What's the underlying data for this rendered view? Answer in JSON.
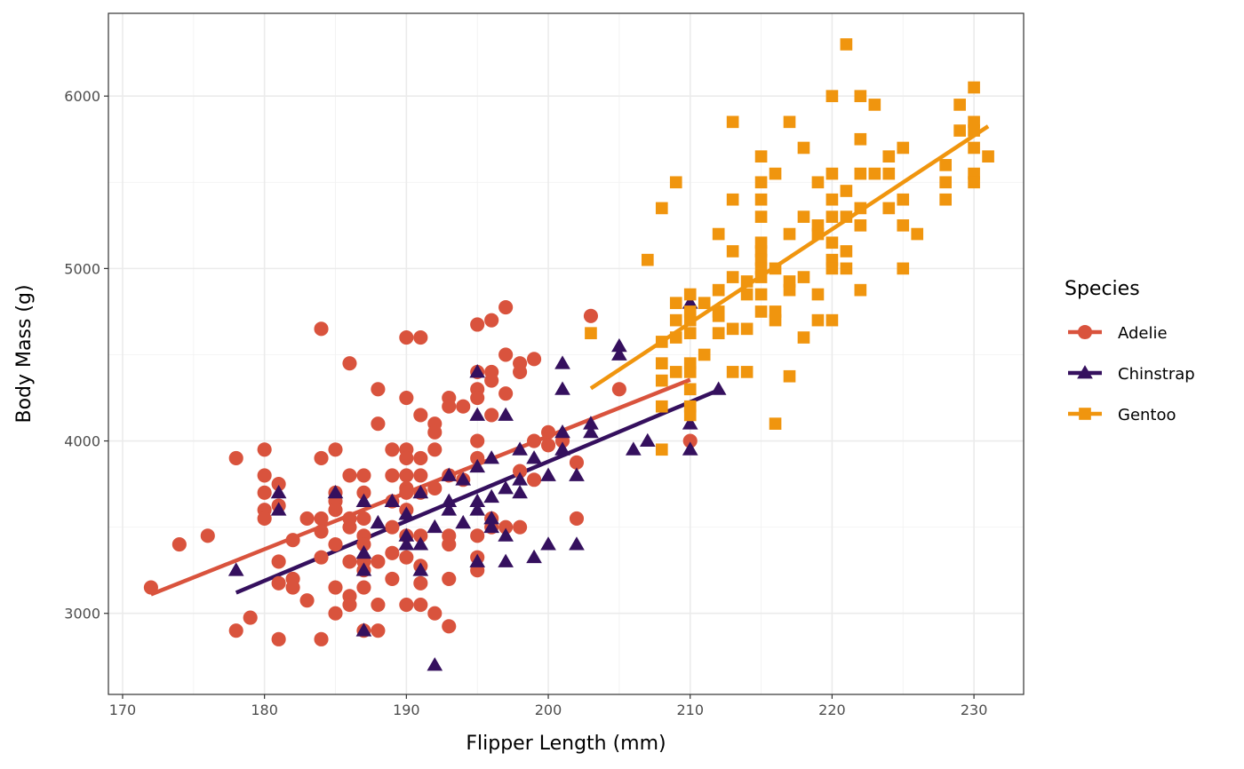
{
  "chart_data": {
    "type": "scatter",
    "xlabel": "Flipper Length (mm)",
    "ylabel": "Body Mass (g)",
    "xlim": [
      169,
      233.5
    ],
    "ylim": [
      2530,
      6480
    ],
    "xticks": [
      170,
      180,
      190,
      200,
      210,
      220,
      230
    ],
    "yticks": [
      3000,
      4000,
      5000,
      6000
    ],
    "xtick_labels": [
      "170",
      "180",
      "190",
      "200",
      "210",
      "220",
      "230"
    ],
    "ytick_labels": [
      "3000",
      "4000",
      "5000",
      "6000"
    ],
    "grid": true,
    "legend": {
      "title": "Species",
      "placement": "right"
    },
    "series": [
      {
        "name": "Adelie",
        "color": "#D9533D",
        "marker": "circle",
        "trend": {
          "x": [
            172,
            210
          ],
          "y": [
            3110,
            4355
          ]
        },
        "points": [
          [
            172,
            3150
          ],
          [
            174,
            3400
          ],
          [
            176,
            3450
          ],
          [
            178,
            3900
          ],
          [
            178,
            2900
          ],
          [
            179,
            2975
          ],
          [
            180,
            3950
          ],
          [
            180,
            3800
          ],
          [
            180,
            3700
          ],
          [
            180,
            3600
          ],
          [
            180,
            3550
          ],
          [
            181,
            3750
          ],
          [
            181,
            3625
          ],
          [
            181,
            3300
          ],
          [
            181,
            3175
          ],
          [
            181,
            2850
          ],
          [
            182,
            3425
          ],
          [
            182,
            3200
          ],
          [
            182,
            3150
          ],
          [
            183,
            3550
          ],
          [
            183,
            3075
          ],
          [
            184,
            4650
          ],
          [
            184,
            3900
          ],
          [
            184,
            3550
          ],
          [
            184,
            3475
          ],
          [
            184,
            3325
          ],
          [
            184,
            2850
          ],
          [
            185,
            3950
          ],
          [
            185,
            3700
          ],
          [
            185,
            3650
          ],
          [
            185,
            3600
          ],
          [
            185,
            3400
          ],
          [
            185,
            3150
          ],
          [
            185,
            3000
          ],
          [
            186,
            4450
          ],
          [
            186,
            3800
          ],
          [
            186,
            3550
          ],
          [
            186,
            3500
          ],
          [
            186,
            3300
          ],
          [
            186,
            3100
          ],
          [
            186,
            3050
          ],
          [
            187,
            3800
          ],
          [
            187,
            3700
          ],
          [
            187,
            3550
          ],
          [
            187,
            3450
          ],
          [
            187,
            3400
          ],
          [
            187,
            3300
          ],
          [
            187,
            3250
          ],
          [
            187,
            3150
          ],
          [
            187,
            2900
          ],
          [
            188,
            4300
          ],
          [
            188,
            4100
          ],
          [
            188,
            3300
          ],
          [
            188,
            3050
          ],
          [
            188,
            2900
          ],
          [
            189,
            3950
          ],
          [
            189,
            3800
          ],
          [
            189,
            3650
          ],
          [
            189,
            3500
          ],
          [
            189,
            3350
          ],
          [
            189,
            3200
          ],
          [
            190,
            4600
          ],
          [
            190,
            4250
          ],
          [
            190,
            3950
          ],
          [
            190,
            3900
          ],
          [
            190,
            3800
          ],
          [
            190,
            3725
          ],
          [
            190,
            3700
          ],
          [
            190,
            3600
          ],
          [
            190,
            3450
          ],
          [
            190,
            3325
          ],
          [
            190,
            3050
          ],
          [
            191,
            4600
          ],
          [
            191,
            4150
          ],
          [
            191,
            3900
          ],
          [
            191,
            3800
          ],
          [
            191,
            3700
          ],
          [
            191,
            3450
          ],
          [
            191,
            3275
          ],
          [
            191,
            3175
          ],
          [
            191,
            3050
          ],
          [
            192,
            4100
          ],
          [
            192,
            4050
          ],
          [
            192,
            3950
          ],
          [
            192,
            3725
          ],
          [
            192,
            3000
          ],
          [
            193,
            4250
          ],
          [
            193,
            4200
          ],
          [
            193,
            3800
          ],
          [
            193,
            3450
          ],
          [
            193,
            3400
          ],
          [
            193,
            3200
          ],
          [
            193,
            2925
          ],
          [
            194,
            4200
          ],
          [
            194,
            3775
          ],
          [
            195,
            4675
          ],
          [
            195,
            4400
          ],
          [
            195,
            4300
          ],
          [
            195,
            4250
          ],
          [
            195,
            4000
          ],
          [
            195,
            3900
          ],
          [
            195,
            3450
          ],
          [
            195,
            3325
          ],
          [
            195,
            3250
          ],
          [
            196,
            4700
          ],
          [
            196,
            4400
          ],
          [
            196,
            4350
          ],
          [
            196,
            4150
          ],
          [
            196,
            3550
          ],
          [
            196,
            3500
          ],
          [
            197,
            4775
          ],
          [
            197,
            4500
          ],
          [
            197,
            4275
          ],
          [
            197,
            3500
          ],
          [
            198,
            4450
          ],
          [
            198,
            4400
          ],
          [
            198,
            3825
          ],
          [
            198,
            3500
          ],
          [
            199,
            4475
          ],
          [
            199,
            4000
          ],
          [
            199,
            3775
          ],
          [
            200,
            4050
          ],
          [
            200,
            3975
          ],
          [
            201,
            4000
          ],
          [
            202,
            3875
          ],
          [
            202,
            3550
          ],
          [
            203,
            4725
          ],
          [
            205,
            4300
          ],
          [
            210,
            4000
          ]
        ]
      },
      {
        "name": "Chinstrap",
        "color": "#35105E",
        "marker": "triangle",
        "trend": {
          "x": [
            178,
            212
          ],
          "y": [
            3120,
            4295
          ]
        },
        "points": [
          [
            178,
            3250
          ],
          [
            181,
            3700
          ],
          [
            181,
            3600
          ],
          [
            185,
            3700
          ],
          [
            187,
            3650
          ],
          [
            187,
            3350
          ],
          [
            187,
            3250
          ],
          [
            187,
            2900
          ],
          [
            188,
            3525
          ],
          [
            189,
            3650
          ],
          [
            190,
            3575
          ],
          [
            190,
            3450
          ],
          [
            190,
            3400
          ],
          [
            191,
            3700
          ],
          [
            191,
            3400
          ],
          [
            191,
            3250
          ],
          [
            192,
            3500
          ],
          [
            192,
            2700
          ],
          [
            193,
            3800
          ],
          [
            193,
            3650
          ],
          [
            193,
            3600
          ],
          [
            194,
            3775
          ],
          [
            194,
            3525
          ],
          [
            195,
            4400
          ],
          [
            195,
            4150
          ],
          [
            195,
            3850
          ],
          [
            195,
            3650
          ],
          [
            195,
            3600
          ],
          [
            195,
            3300
          ],
          [
            196,
            3900
          ],
          [
            196,
            3675
          ],
          [
            196,
            3550
          ],
          [
            196,
            3500
          ],
          [
            197,
            4150
          ],
          [
            197,
            3725
          ],
          [
            197,
            3450
          ],
          [
            197,
            3300
          ],
          [
            198,
            3950
          ],
          [
            198,
            3775
          ],
          [
            198,
            3700
          ],
          [
            199,
            3900
          ],
          [
            199,
            3325
          ],
          [
            200,
            3800
          ],
          [
            200,
            3400
          ],
          [
            201,
            4450
          ],
          [
            201,
            4300
          ],
          [
            201,
            4050
          ],
          [
            201,
            3950
          ],
          [
            202,
            3800
          ],
          [
            202,
            3400
          ],
          [
            203,
            4100
          ],
          [
            203,
            4050
          ],
          [
            205,
            4550
          ],
          [
            205,
            4500
          ],
          [
            206,
            3950
          ],
          [
            207,
            4000
          ],
          [
            210,
            4800
          ],
          [
            210,
            4100
          ],
          [
            210,
            3950
          ],
          [
            212,
            4300
          ]
        ]
      },
      {
        "name": "Gentoo",
        "color": "#F0950E",
        "marker": "square",
        "trend": {
          "x": [
            203,
            231
          ],
          "y": [
            4305,
            5825
          ]
        },
        "points": [
          [
            203,
            4625
          ],
          [
            207,
            5050
          ],
          [
            208,
            5350
          ],
          [
            208,
            4575
          ],
          [
            208,
            4450
          ],
          [
            208,
            4350
          ],
          [
            208,
            4200
          ],
          [
            208,
            3950
          ],
          [
            209,
            5500
          ],
          [
            209,
            4800
          ],
          [
            209,
            4700
          ],
          [
            209,
            4600
          ],
          [
            209,
            4400
          ],
          [
            210,
            4850
          ],
          [
            210,
            4750
          ],
          [
            210,
            4700
          ],
          [
            210,
            4625
          ],
          [
            210,
            4450
          ],
          [
            210,
            4400
          ],
          [
            210,
            4300
          ],
          [
            210,
            4200
          ],
          [
            210,
            4150
          ],
          [
            211,
            4800
          ],
          [
            211,
            4500
          ],
          [
            212,
            5200
          ],
          [
            212,
            4875
          ],
          [
            212,
            4750
          ],
          [
            212,
            4725
          ],
          [
            212,
            4625
          ],
          [
            213,
            5850
          ],
          [
            213,
            5400
          ],
          [
            213,
            5100
          ],
          [
            213,
            4950
          ],
          [
            213,
            4650
          ],
          [
            213,
            4400
          ],
          [
            214,
            4925
          ],
          [
            214,
            4850
          ],
          [
            214,
            4650
          ],
          [
            214,
            4400
          ],
          [
            215,
            5650
          ],
          [
            215,
            5500
          ],
          [
            215,
            5400
          ],
          [
            215,
            5300
          ],
          [
            215,
            5150
          ],
          [
            215,
            5100
          ],
          [
            215,
            5050
          ],
          [
            215,
            5000
          ],
          [
            215,
            4950
          ],
          [
            215,
            4850
          ],
          [
            215,
            4750
          ],
          [
            216,
            5550
          ],
          [
            216,
            5000
          ],
          [
            216,
            4750
          ],
          [
            216,
            4700
          ],
          [
            216,
            4100
          ],
          [
            217,
            5850
          ],
          [
            217,
            5200
          ],
          [
            217,
            4925
          ],
          [
            217,
            4875
          ],
          [
            217,
            4375
          ],
          [
            218,
            5700
          ],
          [
            218,
            5300
          ],
          [
            218,
            4950
          ],
          [
            218,
            4600
          ],
          [
            219,
            5500
          ],
          [
            219,
            5250
          ],
          [
            219,
            5200
          ],
          [
            219,
            4850
          ],
          [
            219,
            4700
          ],
          [
            220,
            6000
          ],
          [
            220,
            5550
          ],
          [
            220,
            5400
          ],
          [
            220,
            5300
          ],
          [
            220,
            5150
          ],
          [
            220,
            5050
          ],
          [
            220,
            5000
          ],
          [
            220,
            4700
          ],
          [
            221,
            6300
          ],
          [
            221,
            5450
          ],
          [
            221,
            5300
          ],
          [
            221,
            5100
          ],
          [
            221,
            5000
          ],
          [
            222,
            6000
          ],
          [
            222,
            5750
          ],
          [
            222,
            5550
          ],
          [
            222,
            5350
          ],
          [
            222,
            5250
          ],
          [
            222,
            4875
          ],
          [
            223,
            5950
          ],
          [
            223,
            5550
          ],
          [
            224,
            5650
          ],
          [
            224,
            5550
          ],
          [
            224,
            5350
          ],
          [
            225,
            5700
          ],
          [
            225,
            5400
          ],
          [
            225,
            5250
          ],
          [
            225,
            5000
          ],
          [
            226,
            5200
          ],
          [
            228,
            5600
          ],
          [
            228,
            5500
          ],
          [
            228,
            5400
          ],
          [
            229,
            5950
          ],
          [
            229,
            5800
          ],
          [
            230,
            6050
          ],
          [
            230,
            5850
          ],
          [
            230,
            5800
          ],
          [
            230,
            5700
          ],
          [
            230,
            5550
          ],
          [
            230,
            5500
          ],
          [
            231,
            5650
          ]
        ]
      }
    ]
  }
}
